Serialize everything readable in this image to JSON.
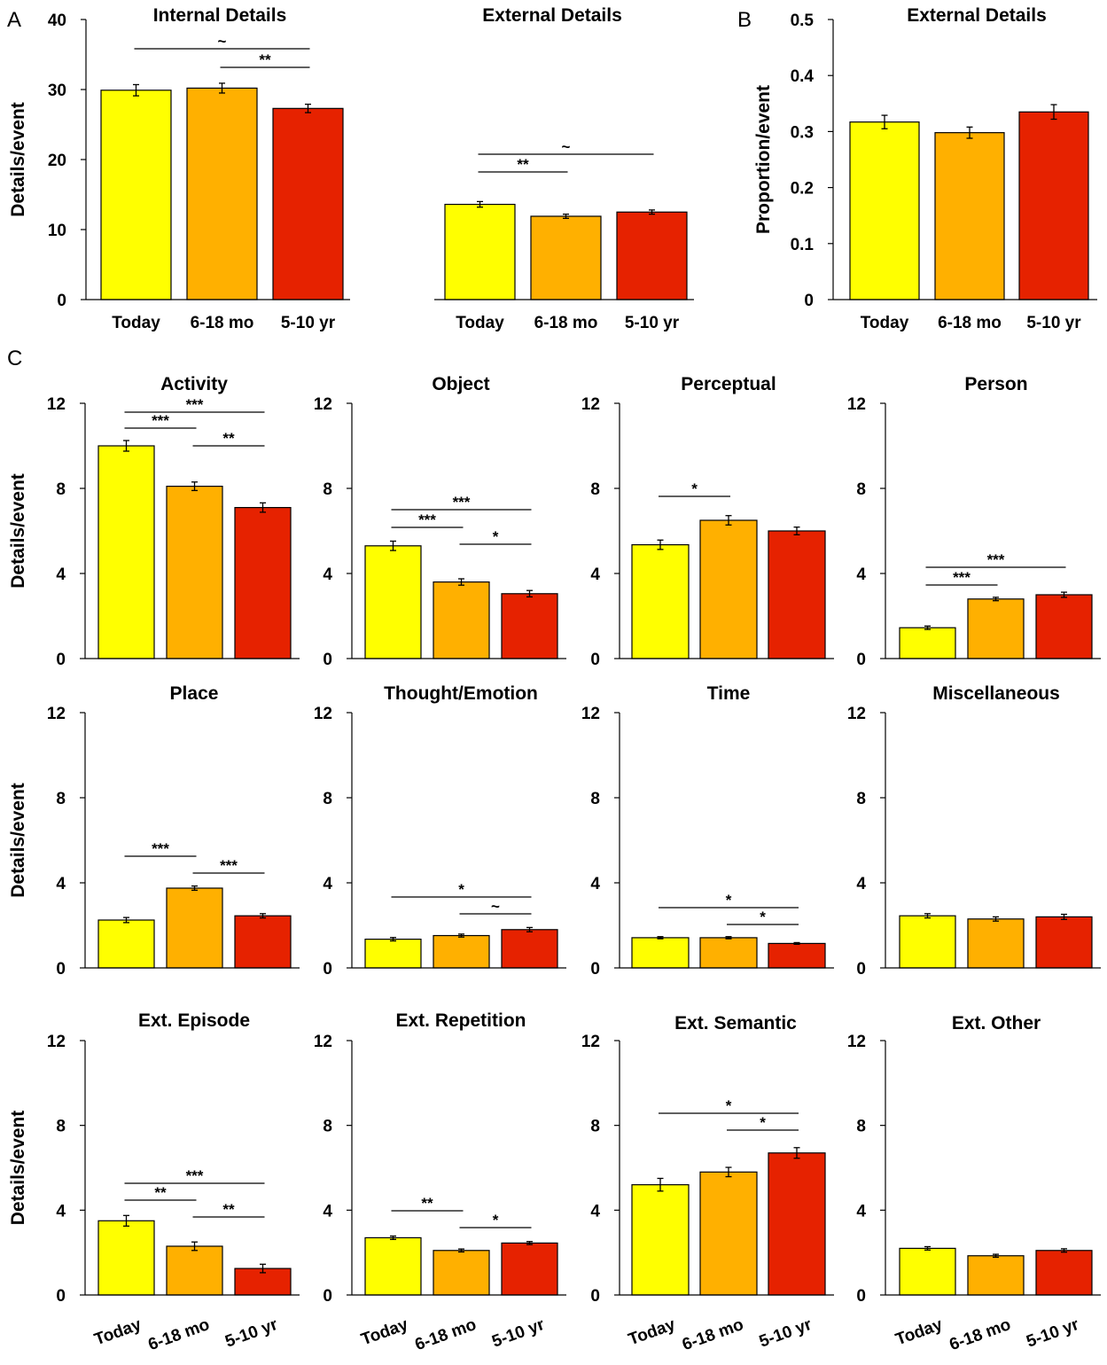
{
  "panel_letters": [
    "A",
    "B",
    "C"
  ],
  "categories": [
    "Today",
    "6-18 mo",
    "5-10 yr"
  ],
  "colors": {
    "Today": "#ffff00",
    "6-18 mo": "#ffb000",
    "5-10 yr": "#e62200"
  },
  "chart_data": [
    {
      "id": "A1",
      "type": "bar",
      "title": "Internal Details",
      "ylabel": "Details/event",
      "categories": [
        "Today",
        "6-18 mo",
        "5-10 yr"
      ],
      "values": [
        29.9,
        30.2,
        27.3
      ],
      "errors": [
        0.8,
        0.7,
        0.6
      ],
      "ylim": [
        0,
        40
      ],
      "yticks": [
        0,
        10,
        20,
        30,
        40
      ],
      "ytick_labels": [
        "0",
        "10",
        "20",
        "30",
        "40"
      ],
      "significance": [
        {
          "from": 0,
          "to": 2,
          "label": "~"
        },
        {
          "from": 1,
          "to": 2,
          "label": "**"
        }
      ]
    },
    {
      "id": "A2",
      "type": "bar",
      "title": "External Details",
      "categories": [
        "Today",
        "6-18 mo",
        "5-10 yr"
      ],
      "values": [
        13.6,
        11.9,
        12.5
      ],
      "errors": [
        0.4,
        0.3,
        0.3
      ],
      "ylim": [
        0,
        40
      ],
      "significance": [
        {
          "from": 0,
          "to": 2,
          "label": "~"
        },
        {
          "from": 0,
          "to": 1,
          "label": "**"
        }
      ]
    },
    {
      "id": "B",
      "type": "bar",
      "title": "External Details",
      "ylabel": "Proportion/event",
      "categories": [
        "Today",
        "6-18 mo",
        "5-10 yr"
      ],
      "values": [
        0.317,
        0.298,
        0.335
      ],
      "errors": [
        0.012,
        0.01,
        0.013
      ],
      "ylim": [
        0,
        0.5
      ],
      "yticks": [
        0,
        0.1,
        0.2,
        0.3,
        0.4,
        0.5
      ],
      "ytick_labels": [
        "0",
        "0.1",
        "0.2",
        "0.3",
        "0.4",
        "0.5"
      ],
      "significance": []
    },
    {
      "id": "C1",
      "type": "bar",
      "title": "Activity",
      "ylabel": "Details/event",
      "categories": [
        "Today",
        "6-18 mo",
        "5-10 yr"
      ],
      "values": [
        10.0,
        8.1,
        7.1
      ],
      "errors": [
        0.25,
        0.2,
        0.22
      ],
      "ylim": [
        0,
        12
      ],
      "yticks": [
        0,
        4,
        8,
        12
      ],
      "ytick_labels": [
        "0",
        "4",
        "8",
        "12"
      ],
      "significance": [
        {
          "from": 0,
          "to": 2,
          "label": "***"
        },
        {
          "from": 0,
          "to": 1,
          "label": "***"
        },
        {
          "from": 1,
          "to": 2,
          "label": "**"
        }
      ]
    },
    {
      "id": "C2",
      "type": "bar",
      "title": "Object",
      "categories": [
        "Today",
        "6-18 mo",
        "5-10 yr"
      ],
      "values": [
        5.3,
        3.6,
        3.05
      ],
      "errors": [
        0.22,
        0.15,
        0.15
      ],
      "ylim": [
        0,
        12
      ],
      "yticks": [
        0,
        4,
        8,
        12
      ],
      "ytick_labels": [
        "0",
        "4",
        "8",
        "12"
      ],
      "significance": [
        {
          "from": 0,
          "to": 2,
          "label": "***"
        },
        {
          "from": 0,
          "to": 1,
          "label": "***"
        },
        {
          "from": 1,
          "to": 2,
          "label": "*"
        }
      ]
    },
    {
      "id": "C3",
      "type": "bar",
      "title": "Perceptual",
      "categories": [
        "Today",
        "6-18 mo",
        "5-10 yr"
      ],
      "values": [
        5.35,
        6.5,
        6.0
      ],
      "errors": [
        0.22,
        0.22,
        0.18
      ],
      "ylim": [
        0,
        12
      ],
      "yticks": [
        0,
        4,
        8,
        12
      ],
      "ytick_labels": [
        "0",
        "4",
        "8",
        "12"
      ],
      "significance": [
        {
          "from": 0,
          "to": 1,
          "label": "*"
        }
      ]
    },
    {
      "id": "C4",
      "type": "bar",
      "title": "Person",
      "categories": [
        "Today",
        "6-18 mo",
        "5-10 yr"
      ],
      "values": [
        1.45,
        2.8,
        3.0
      ],
      "errors": [
        0.08,
        0.08,
        0.12
      ],
      "ylim": [
        0,
        12
      ],
      "yticks": [
        0,
        4,
        8,
        12
      ],
      "ytick_labels": [
        "0",
        "4",
        "8",
        "12"
      ],
      "significance": [
        {
          "from": 0,
          "to": 2,
          "label": "***"
        },
        {
          "from": 0,
          "to": 1,
          "label": "***"
        }
      ]
    },
    {
      "id": "C5",
      "type": "bar",
      "title": "Place",
      "ylabel": "Details/event",
      "categories": [
        "Today",
        "6-18 mo",
        "5-10 yr"
      ],
      "values": [
        2.25,
        3.75,
        2.45
      ],
      "errors": [
        0.12,
        0.1,
        0.1
      ],
      "ylim": [
        0,
        12
      ],
      "yticks": [
        0,
        4,
        8,
        12
      ],
      "ytick_labels": [
        "0",
        "4",
        "8",
        "12"
      ],
      "significance": [
        {
          "from": 0,
          "to": 1,
          "label": "***"
        },
        {
          "from": 1,
          "to": 2,
          "label": "***"
        }
      ]
    },
    {
      "id": "C6",
      "type": "bar",
      "title": "Thought/Emotion",
      "categories": [
        "Today",
        "6-18 mo",
        "5-10 yr"
      ],
      "values": [
        1.35,
        1.52,
        1.8
      ],
      "errors": [
        0.08,
        0.07,
        0.1
      ],
      "ylim": [
        0,
        12
      ],
      "yticks": [
        0,
        4,
        8,
        12
      ],
      "ytick_labels": [
        "0",
        "4",
        "8",
        "12"
      ],
      "significance": [
        {
          "from": 0,
          "to": 2,
          "label": "*"
        },
        {
          "from": 1,
          "to": 2,
          "label": "~"
        }
      ]
    },
    {
      "id": "C7",
      "type": "bar",
      "title": "Time",
      "categories": [
        "Today",
        "6-18 mo",
        "5-10 yr"
      ],
      "values": [
        1.42,
        1.42,
        1.15
      ],
      "errors": [
        0.05,
        0.05,
        0.04
      ],
      "ylim": [
        0,
        12
      ],
      "yticks": [
        0,
        4,
        8,
        12
      ],
      "ytick_labels": [
        "0",
        "4",
        "8",
        "12"
      ],
      "significance": [
        {
          "from": 0,
          "to": 2,
          "label": "*"
        },
        {
          "from": 1,
          "to": 2,
          "label": "*"
        }
      ]
    },
    {
      "id": "C8",
      "type": "bar",
      "title": "Miscellaneous",
      "categories": [
        "Today",
        "6-18 mo",
        "5-10 yr"
      ],
      "values": [
        2.45,
        2.3,
        2.4
      ],
      "errors": [
        0.1,
        0.1,
        0.12
      ],
      "ylim": [
        0,
        12
      ],
      "yticks": [
        0,
        4,
        8,
        12
      ],
      "ytick_labels": [
        "0",
        "4",
        "8",
        "12"
      ],
      "significance": []
    },
    {
      "id": "C9",
      "type": "bar",
      "title": "Ext. Episode",
      "ylabel": "Details/event",
      "categories": [
        "Today",
        "6-18 mo",
        "5-10 yr"
      ],
      "values": [
        3.5,
        2.3,
        1.25
      ],
      "errors": [
        0.25,
        0.2,
        0.2
      ],
      "ylim": [
        0,
        12
      ],
      "yticks": [
        0,
        4,
        8,
        12
      ],
      "ytick_labels": [
        "0",
        "4",
        "8",
        "12"
      ],
      "significance": [
        {
          "from": 0,
          "to": 2,
          "label": "***"
        },
        {
          "from": 0,
          "to": 1,
          "label": "**"
        },
        {
          "from": 1,
          "to": 2,
          "label": "**"
        }
      ]
    },
    {
      "id": "C10",
      "type": "bar",
      "title": "Ext. Repetition",
      "categories": [
        "Today",
        "6-18 mo",
        "5-10 yr"
      ],
      "values": [
        2.7,
        2.1,
        2.45
      ],
      "errors": [
        0.08,
        0.07,
        0.07
      ],
      "ylim": [
        0,
        12
      ],
      "yticks": [
        0,
        4,
        8,
        12
      ],
      "ytick_labels": [
        "0",
        "4",
        "8",
        "12"
      ],
      "significance": [
        {
          "from": 0,
          "to": 1,
          "label": "**"
        },
        {
          "from": 1,
          "to": 2,
          "label": "*"
        }
      ]
    },
    {
      "id": "C11",
      "type": "bar",
      "title": "Ext. Semantic",
      "categories": [
        "Today",
        "6-18 mo",
        "5-10 yr"
      ],
      "values": [
        5.2,
        5.8,
        6.7
      ],
      "errors": [
        0.3,
        0.22,
        0.25
      ],
      "ylim": [
        0,
        12
      ],
      "yticks": [
        0,
        4,
        8,
        12
      ],
      "ytick_labels": [
        "0",
        "4",
        "8",
        "12"
      ],
      "significance": [
        {
          "from": 0,
          "to": 2,
          "label": "*"
        },
        {
          "from": 1,
          "to": 2,
          "label": "*"
        }
      ]
    },
    {
      "id": "C12",
      "type": "bar",
      "title": "Ext. Other",
      "categories": [
        "Today",
        "6-18 mo",
        "5-10 yr"
      ],
      "values": [
        2.2,
        1.85,
        2.1
      ],
      "errors": [
        0.08,
        0.07,
        0.08
      ],
      "ylim": [
        0,
        12
      ],
      "yticks": [
        0,
        4,
        8,
        12
      ],
      "ytick_labels": [
        "0",
        "4",
        "8",
        "12"
      ],
      "significance": []
    }
  ]
}
